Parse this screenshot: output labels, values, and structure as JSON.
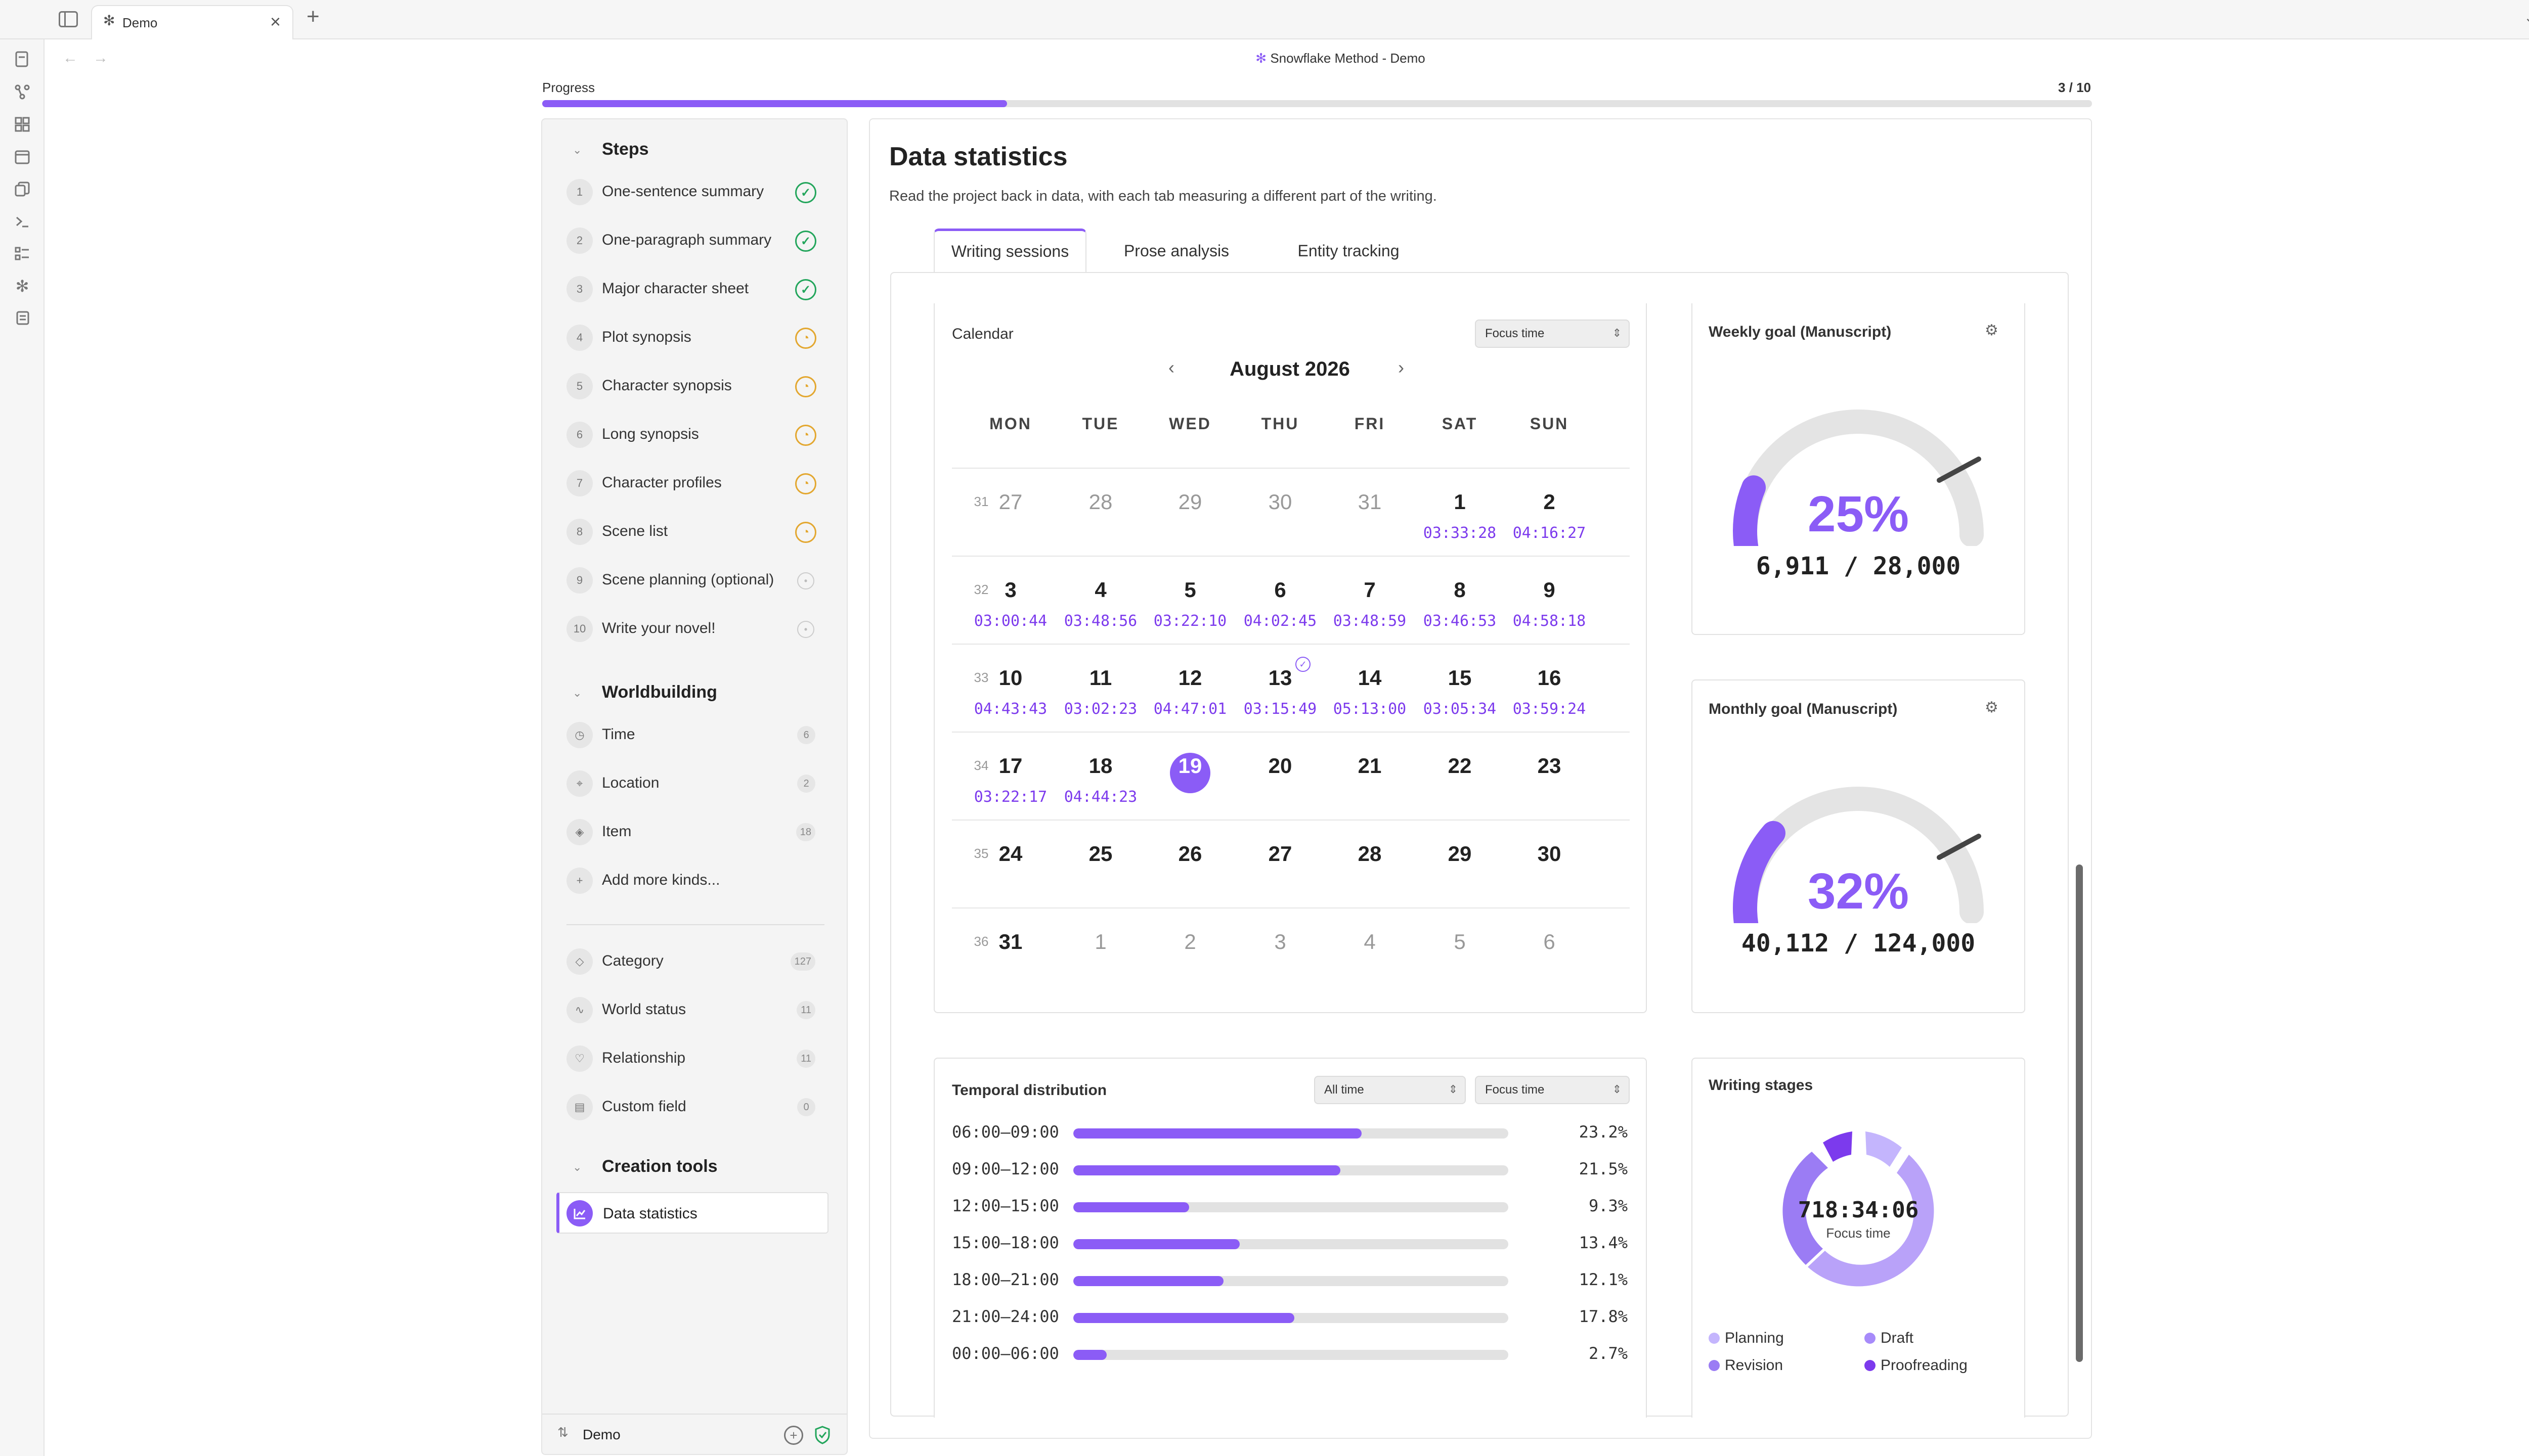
{
  "window": {
    "tab_title": "Demo",
    "new_tab": "+",
    "close": "×",
    "doc_title": "Snowflake Method - Demo",
    "more": "⋯",
    "nav_back": "←",
    "nav_forward": "→"
  },
  "progress": {
    "label": "Progress",
    "counter": "3 / 10",
    "fraction": 0.3
  },
  "steps_section": {
    "title": "Steps",
    "items": [
      {
        "num": "1",
        "label": "One-sentence summary",
        "status": "done"
      },
      {
        "num": "2",
        "label": "One-paragraph summary",
        "status": "done"
      },
      {
        "num": "3",
        "label": "Major character sheet",
        "status": "done"
      },
      {
        "num": "4",
        "label": "Plot synopsis",
        "status": "in-progress"
      },
      {
        "num": "5",
        "label": "Character synopsis",
        "status": "in-progress"
      },
      {
        "num": "6",
        "label": "Long synopsis",
        "status": "in-progress"
      },
      {
        "num": "7",
        "label": "Character profiles",
        "status": "in-progress"
      },
      {
        "num": "8",
        "label": "Scene list",
        "status": "in-progress"
      },
      {
        "num": "9",
        "label": "Scene planning (optional)",
        "status": "todo"
      },
      {
        "num": "10",
        "label": "Write your novel!",
        "status": "todo"
      }
    ]
  },
  "worldbuilding": {
    "title": "Worldbuilding",
    "kinds": [
      {
        "label": "Time",
        "count": "6",
        "icon": "clock-icon",
        "glyph": "◷"
      },
      {
        "label": "Location",
        "count": "2",
        "icon": "location-pin-icon",
        "glyph": "⌖"
      },
      {
        "label": "Item",
        "count": "18",
        "icon": "gem-icon",
        "glyph": "◈"
      }
    ],
    "add_more": "Add more kinds...",
    "meta": [
      {
        "label": "Category",
        "count": "127",
        "icon": "tag-icon",
        "glyph": "◇"
      },
      {
        "label": "World status",
        "count": "11",
        "icon": "pulse-icon",
        "glyph": "∿"
      },
      {
        "label": "Relationship",
        "count": "11",
        "icon": "heart-icon",
        "glyph": "♡"
      },
      {
        "label": "Custom field",
        "count": "0",
        "icon": "table-icon",
        "glyph": "▤"
      }
    ]
  },
  "creation_tools": {
    "title": "Creation tools",
    "items": [
      {
        "label": "Data statistics"
      }
    ]
  },
  "footer": {
    "vault": "Demo"
  },
  "main": {
    "title": "Data statistics",
    "subtitle": "Read the project back in data, with each tab measuring a different part of the writing.",
    "tabs": [
      "Writing sessions",
      "Prose analysis",
      "Entity tracking"
    ]
  },
  "calendar": {
    "title": "Calendar",
    "metric_select": "Focus time",
    "month": "August 2026",
    "weekdays": [
      "MON",
      "TUE",
      "WED",
      "THU",
      "FRI",
      "SAT",
      "SUN"
    ],
    "today": "19",
    "weeks": [
      {
        "week": "31",
        "days": [
          {
            "d": "27",
            "other": true
          },
          {
            "d": "28",
            "other": true
          },
          {
            "d": "29",
            "other": true
          },
          {
            "d": "30",
            "other": true
          },
          {
            "d": "31",
            "other": true
          },
          {
            "d": "1",
            "t": "03:33:28"
          },
          {
            "d": "2",
            "t": "04:16:27"
          }
        ]
      },
      {
        "week": "32",
        "days": [
          {
            "d": "3",
            "t": "03:00:44"
          },
          {
            "d": "4",
            "t": "03:48:56"
          },
          {
            "d": "5",
            "t": "03:22:10"
          },
          {
            "d": "6",
            "t": "04:02:45"
          },
          {
            "d": "7",
            "t": "03:48:59"
          },
          {
            "d": "8",
            "t": "03:46:53"
          },
          {
            "d": "9",
            "t": "04:58:18"
          }
        ]
      },
      {
        "week": "33",
        "days": [
          {
            "d": "10",
            "t": "04:43:43"
          },
          {
            "d": "11",
            "t": "03:02:23"
          },
          {
            "d": "12",
            "t": "04:47:01"
          },
          {
            "d": "13",
            "t": "03:15:49",
            "goal": true
          },
          {
            "d": "14",
            "t": "05:13:00"
          },
          {
            "d": "15",
            "t": "03:05:34"
          },
          {
            "d": "16",
            "t": "03:59:24"
          }
        ]
      },
      {
        "week": "34",
        "days": [
          {
            "d": "17",
            "t": "03:22:17"
          },
          {
            "d": "18",
            "t": "04:44:23"
          },
          {
            "d": "19",
            "today": true
          },
          {
            "d": "20"
          },
          {
            "d": "21"
          },
          {
            "d": "22"
          },
          {
            "d": "23"
          }
        ]
      },
      {
        "week": "35",
        "days": [
          {
            "d": "24"
          },
          {
            "d": "25"
          },
          {
            "d": "26"
          },
          {
            "d": "27"
          },
          {
            "d": "28"
          },
          {
            "d": "29"
          },
          {
            "d": "30"
          }
        ]
      },
      {
        "week": "36",
        "days": [
          {
            "d": "31"
          },
          {
            "d": "1",
            "other": true
          },
          {
            "d": "2",
            "other": true
          },
          {
            "d": "3",
            "other": true
          },
          {
            "d": "4",
            "other": true
          },
          {
            "d": "5",
            "other": true
          },
          {
            "d": "6",
            "other": true
          }
        ]
      }
    ]
  },
  "weekly_goal": {
    "title": "Weekly goal (Manuscript)",
    "percent": "25%",
    "value": 0.25,
    "progress": "6,911 / 28,000"
  },
  "monthly_goal": {
    "title": "Monthly goal (Manuscript)",
    "percent": "32%",
    "value": 0.32,
    "progress": "40,112 / 124,000"
  },
  "temporal": {
    "title": "Temporal distribution",
    "range_select": "All time",
    "metric_select": "Focus time",
    "rows": [
      {
        "range": "06:00–09:00",
        "pct": "23.2%",
        "value": 23.2
      },
      {
        "range": "09:00–12:00",
        "pct": "21.5%",
        "value": 21.5
      },
      {
        "range": "12:00–15:00",
        "pct": "9.3%",
        "value": 9.3
      },
      {
        "range": "15:00–18:00",
        "pct": "13.4%",
        "value": 13.4
      },
      {
        "range": "18:00–21:00",
        "pct": "12.1%",
        "value": 12.1
      },
      {
        "range": "21:00–24:00",
        "pct": "17.8%",
        "value": 17.8
      },
      {
        "range": "00:00–06:00",
        "pct": "2.7%",
        "value": 2.7
      }
    ]
  },
  "stages": {
    "title": "Writing stages",
    "total": "718:34:06",
    "total_label": "Focus time",
    "legend": [
      {
        "label": "Planning",
        "color": "#c4b5fd"
      },
      {
        "label": "Draft",
        "color": "#a78bfa"
      },
      {
        "label": "Revision",
        "color": "#9b7cf4"
      },
      {
        "label": "Proofreading",
        "color": "#7c3aed"
      }
    ]
  },
  "colors": {
    "accent": "#8b5cf6",
    "done": "#22a55b",
    "in_progress": "#e3a72f"
  }
}
